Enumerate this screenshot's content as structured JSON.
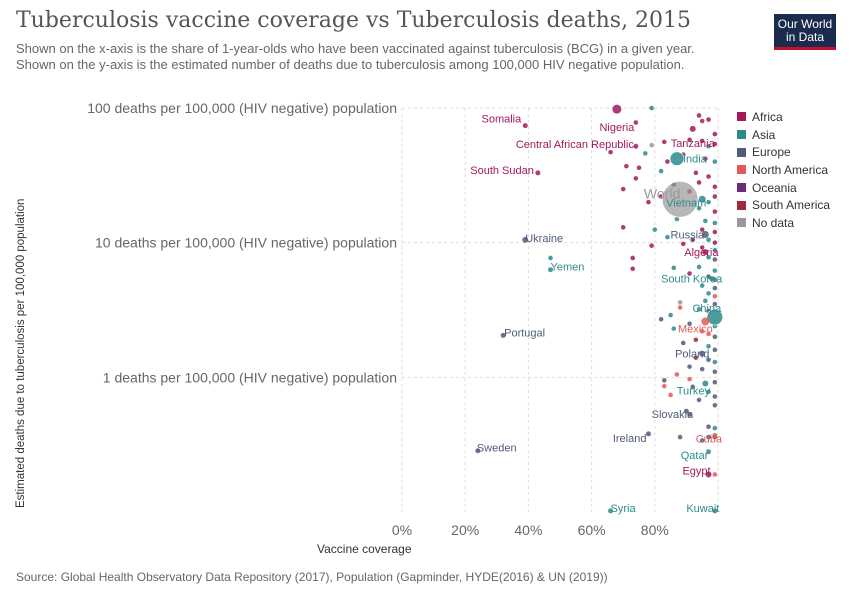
{
  "header": {
    "title": "Tuberculosis vaccine coverage vs Tuberculosis deaths, 2015",
    "subtitle": "Shown on the x-axis is the share of 1-year-olds who have been vaccinated against tuberculosis (BCG) in a given year. Shown on the y-axis is the estimated number of deaths due to tuberculosis among 100,000 HIV negative population.",
    "logo_line1": "Our World",
    "logo_line2": "in Data"
  },
  "footer": {
    "source": "Source: Global Health Observatory Data Repository (2017), Population (Gapminder, HYDE(2016) & UN (2019))"
  },
  "colors": {
    "Africa": "#a2185b",
    "Asia": "#2e8b8c",
    "Europe": "#4f5b7a",
    "North America": "#e05a5a",
    "Oceania": "#6a2d7a",
    "South America": "#9e2a3a",
    "No data": "#999999"
  },
  "legend": [
    "Africa",
    "Asia",
    "Europe",
    "North America",
    "Oceania",
    "South America",
    "No data"
  ],
  "chart_data": {
    "type": "scatter",
    "xlabel": "Vaccine coverage",
    "ylabel": "Estimated deaths due to tuberculosis per 100,000 population",
    "x_scale": "linear",
    "y_scale": "log",
    "xlim": [
      0,
      100
    ],
    "ylim": [
      0.1,
      100
    ],
    "x_ticks": [
      {
        "value": 0,
        "label": "0%"
      },
      {
        "value": 20,
        "label": "20%"
      },
      {
        "value": 40,
        "label": "40%"
      },
      {
        "value": 60,
        "label": "60%"
      },
      {
        "value": 80,
        "label": "80%"
      }
    ],
    "y_ticks": [
      {
        "value": 100,
        "label": "100 deaths per 100,000 (HIV negative) population"
      },
      {
        "value": 10,
        "label": "10 deaths per 100,000 (HIV negative) population"
      },
      {
        "value": 1,
        "label": "1 deaths per 100,000 (HIV negative) population"
      }
    ],
    "labeled_points": [
      {
        "name": "Nigeria",
        "x": 68,
        "y": 98,
        "region": "Africa",
        "size": 4.5
      },
      {
        "name": "Somalia",
        "x": 39,
        "y": 74,
        "region": "Africa",
        "size": 2.5
      },
      {
        "name": "Tanzania",
        "x": 92,
        "y": 70,
        "region": "Africa",
        "size": 3
      },
      {
        "name": "Central African Republic",
        "x": 74,
        "y": 52,
        "region": "Africa",
        "size": 2.5
      },
      {
        "name": "India",
        "x": 87,
        "y": 42,
        "region": "Asia",
        "size": 7
      },
      {
        "name": "South Sudan",
        "x": 43,
        "y": 33,
        "region": "Africa",
        "size": 2.5
      },
      {
        "name": "World",
        "x": 88,
        "y": 21,
        "region": "No data",
        "size": 18
      },
      {
        "name": "Vietnam",
        "x": 95,
        "y": 21,
        "region": "Asia",
        "size": 3.5
      },
      {
        "name": "Russia",
        "x": 96,
        "y": 11.5,
        "region": "Europe",
        "size": 3.5
      },
      {
        "name": "Ukraine",
        "x": 39,
        "y": 10.5,
        "region": "Europe",
        "size": 3
      },
      {
        "name": "Algeria",
        "x": 96,
        "y": 8.5,
        "region": "Africa",
        "size": 3
      },
      {
        "name": "Yemen",
        "x": 47,
        "y": 6.3,
        "region": "Asia",
        "size": 2.5
      },
      {
        "name": "South Korea",
        "x": 98,
        "y": 5.4,
        "region": "Asia",
        "size": 2.5
      },
      {
        "name": "China",
        "x": 99,
        "y": 2.8,
        "region": "Asia",
        "size": 8
      },
      {
        "name": "Mexico",
        "x": 96,
        "y": 2.6,
        "region": "North America",
        "size": 4
      },
      {
        "name": "Portugal",
        "x": 32,
        "y": 2.05,
        "region": "Europe",
        "size": 2.5
      },
      {
        "name": "Poland",
        "x": 95,
        "y": 1.5,
        "region": "Europe",
        "size": 3
      },
      {
        "name": "Turkey",
        "x": 96,
        "y": 0.9,
        "region": "Asia",
        "size": 3
      },
      {
        "name": "Slovakia",
        "x": 90,
        "y": 0.56,
        "region": "Europe",
        "size": 2.5
      },
      {
        "name": "Ireland",
        "x": 78,
        "y": 0.38,
        "region": "Europe",
        "size": 2.5
      },
      {
        "name": "Cuba",
        "x": 99,
        "y": 0.37,
        "region": "North America",
        "size": 2.5
      },
      {
        "name": "Sweden",
        "x": 24,
        "y": 0.285,
        "region": "Europe",
        "size": 2.5
      },
      {
        "name": "Qatar",
        "x": 97,
        "y": 0.28,
        "region": "Asia",
        "size": 2.5
      },
      {
        "name": "Egypt",
        "x": 97,
        "y": 0.19,
        "region": "Africa",
        "size": 3
      },
      {
        "name": "Syria",
        "x": 66,
        "y": 0.102,
        "region": "Asia",
        "size": 2.5
      },
      {
        "name": "Kuwait",
        "x": 99,
        "y": 0.102,
        "region": "Asia",
        "size": 2.5
      }
    ],
    "other_points": [
      {
        "x": 79,
        "y": 100,
        "r": "Asia"
      },
      {
        "x": 94,
        "y": 88,
        "r": "Africa"
      },
      {
        "x": 97,
        "y": 82,
        "r": "Africa"
      },
      {
        "x": 74,
        "y": 78,
        "r": "Africa"
      },
      {
        "x": 95,
        "y": 80,
        "r": "South America"
      },
      {
        "x": 99,
        "y": 64,
        "r": "Africa"
      },
      {
        "x": 83,
        "y": 56,
        "r": "Africa"
      },
      {
        "x": 79,
        "y": 53,
        "r": "No data"
      },
      {
        "x": 91,
        "y": 58,
        "r": "Africa"
      },
      {
        "x": 95,
        "y": 57,
        "r": "Africa"
      },
      {
        "x": 97,
        "y": 52,
        "r": "Asia"
      },
      {
        "x": 99,
        "y": 54,
        "r": "Africa"
      },
      {
        "x": 77,
        "y": 46,
        "r": "Asia"
      },
      {
        "x": 66,
        "y": 47,
        "r": "Africa"
      },
      {
        "x": 84,
        "y": 40,
        "r": "Africa"
      },
      {
        "x": 89,
        "y": 45,
        "r": "Africa"
      },
      {
        "x": 96,
        "y": 42,
        "r": "Africa"
      },
      {
        "x": 99,
        "y": 40,
        "r": "Asia"
      },
      {
        "x": 71,
        "y": 37,
        "r": "Africa"
      },
      {
        "x": 75,
        "y": 36,
        "r": "Africa"
      },
      {
        "x": 82,
        "y": 34,
        "r": "Asia"
      },
      {
        "x": 93,
        "y": 33,
        "r": "Africa"
      },
      {
        "x": 97,
        "y": 31,
        "r": "Africa"
      },
      {
        "x": 74,
        "y": 30,
        "r": "Africa"
      },
      {
        "x": 86,
        "y": 27,
        "r": "Oceania"
      },
      {
        "x": 94,
        "y": 28,
        "r": "Africa"
      },
      {
        "x": 99,
        "y": 26,
        "r": "Africa"
      },
      {
        "x": 70,
        "y": 25,
        "r": "Africa"
      },
      {
        "x": 82,
        "y": 22,
        "r": "Africa"
      },
      {
        "x": 91,
        "y": 24,
        "r": "Africa"
      },
      {
        "x": 97,
        "y": 20,
        "r": "Asia"
      },
      {
        "x": 99,
        "y": 22,
        "r": "Africa"
      },
      {
        "x": 78,
        "y": 20,
        "r": "Africa"
      },
      {
        "x": 94,
        "y": 18,
        "r": "Asia"
      },
      {
        "x": 99,
        "y": 17,
        "r": "Africa"
      },
      {
        "x": 87,
        "y": 15,
        "r": "Asia"
      },
      {
        "x": 96,
        "y": 14.5,
        "r": "Asia"
      },
      {
        "x": 99,
        "y": 14,
        "r": "Asia"
      },
      {
        "x": 70,
        "y": 13,
        "r": "Africa"
      },
      {
        "x": 80,
        "y": 12.5,
        "r": "Asia"
      },
      {
        "x": 95,
        "y": 12.5,
        "r": "Africa"
      },
      {
        "x": 99,
        "y": 12,
        "r": "Africa"
      },
      {
        "x": 84,
        "y": 11,
        "r": "Asia"
      },
      {
        "x": 92,
        "y": 10.5,
        "r": "Oceania"
      },
      {
        "x": 97,
        "y": 10.5,
        "r": "Asia"
      },
      {
        "x": 99,
        "y": 10,
        "r": "Africa"
      },
      {
        "x": 79,
        "y": 9.5,
        "r": "Africa"
      },
      {
        "x": 89,
        "y": 9.8,
        "r": "Africa"
      },
      {
        "x": 95,
        "y": 9.2,
        "r": "Africa"
      },
      {
        "x": 99,
        "y": 8.8,
        "r": "Asia"
      },
      {
        "x": 73,
        "y": 7.7,
        "r": "Africa"
      },
      {
        "x": 97,
        "y": 7.8,
        "r": "Asia"
      },
      {
        "x": 99,
        "y": 7.5,
        "r": "Europe"
      },
      {
        "x": 47,
        "y": 7.7,
        "r": "Asia"
      },
      {
        "x": 73,
        "y": 6.4,
        "r": "Africa"
      },
      {
        "x": 86,
        "y": 6.5,
        "r": "Asia"
      },
      {
        "x": 94,
        "y": 6.6,
        "r": "Asia"
      },
      {
        "x": 99,
        "y": 6.2,
        "r": "Asia"
      },
      {
        "x": 91,
        "y": 5.9,
        "r": "Africa"
      },
      {
        "x": 97,
        "y": 5.6,
        "r": "Europe"
      },
      {
        "x": 99,
        "y": 5.3,
        "r": "Asia"
      },
      {
        "x": 95,
        "y": 4.8,
        "r": "Asia"
      },
      {
        "x": 99,
        "y": 4.6,
        "r": "Europe"
      },
      {
        "x": 97,
        "y": 4.2,
        "r": "Asia"
      },
      {
        "x": 99,
        "y": 4.0,
        "r": "North America"
      },
      {
        "x": 88,
        "y": 3.6,
        "r": "No data"
      },
      {
        "x": 96,
        "y": 3.7,
        "r": "Asia"
      },
      {
        "x": 99,
        "y": 3.5,
        "r": "Europe"
      },
      {
        "x": 88,
        "y": 3.3,
        "r": "North America"
      },
      {
        "x": 94,
        "y": 3.2,
        "r": "Asia"
      },
      {
        "x": 97,
        "y": 3.1,
        "r": "Africa"
      },
      {
        "x": 85,
        "y": 2.9,
        "r": "Asia"
      },
      {
        "x": 82,
        "y": 2.7,
        "r": "Europe"
      },
      {
        "x": 91,
        "y": 2.5,
        "r": "Europe"
      },
      {
        "x": 99,
        "y": 2.4,
        "r": "Asia"
      },
      {
        "x": 86,
        "y": 2.3,
        "r": "Asia"
      },
      {
        "x": 95,
        "y": 2.2,
        "r": "North America"
      },
      {
        "x": 97,
        "y": 2.1,
        "r": "North America"
      },
      {
        "x": 99,
        "y": 2.0,
        "r": "Europe"
      },
      {
        "x": 93,
        "y": 1.9,
        "r": "South America"
      },
      {
        "x": 89,
        "y": 1.8,
        "r": "Europe"
      },
      {
        "x": 97,
        "y": 1.7,
        "r": "Asia"
      },
      {
        "x": 99,
        "y": 1.6,
        "r": "Europe"
      },
      {
        "x": 93,
        "y": 1.4,
        "r": "South America"
      },
      {
        "x": 97,
        "y": 1.35,
        "r": "Europe"
      },
      {
        "x": 99,
        "y": 1.3,
        "r": "Asia"
      },
      {
        "x": 91,
        "y": 1.2,
        "r": "Europe"
      },
      {
        "x": 95,
        "y": 1.15,
        "r": "Europe"
      },
      {
        "x": 99,
        "y": 1.1,
        "r": "Europe"
      },
      {
        "x": 87,
        "y": 1.05,
        "r": "North America"
      },
      {
        "x": 83,
        "y": 0.95,
        "r": "Europe"
      },
      {
        "x": 91,
        "y": 0.97,
        "r": "North America"
      },
      {
        "x": 99,
        "y": 0.92,
        "r": "Europe"
      },
      {
        "x": 83,
        "y": 0.86,
        "r": "North America"
      },
      {
        "x": 92,
        "y": 0.85,
        "r": "Europe"
      },
      {
        "x": 97,
        "y": 0.78,
        "r": "Asia"
      },
      {
        "x": 99,
        "y": 0.72,
        "r": "Europe"
      },
      {
        "x": 85,
        "y": 0.74,
        "r": "North America"
      },
      {
        "x": 94,
        "y": 0.68,
        "r": "Europe"
      },
      {
        "x": 99,
        "y": 0.62,
        "r": "Europe"
      },
      {
        "x": 91,
        "y": 0.53,
        "r": "Europe"
      },
      {
        "x": 97,
        "y": 0.43,
        "r": "Europe"
      },
      {
        "x": 99,
        "y": 0.42,
        "r": "Asia"
      },
      {
        "x": 88,
        "y": 0.36,
        "r": "Europe"
      },
      {
        "x": 99,
        "y": 0.36,
        "r": "Europe"
      },
      {
        "x": 95,
        "y": 0.34,
        "r": "Europe"
      },
      {
        "x": 97,
        "y": 0.36,
        "r": "Europe"
      },
      {
        "x": 99,
        "y": 0.19,
        "r": "North America"
      }
    ]
  }
}
